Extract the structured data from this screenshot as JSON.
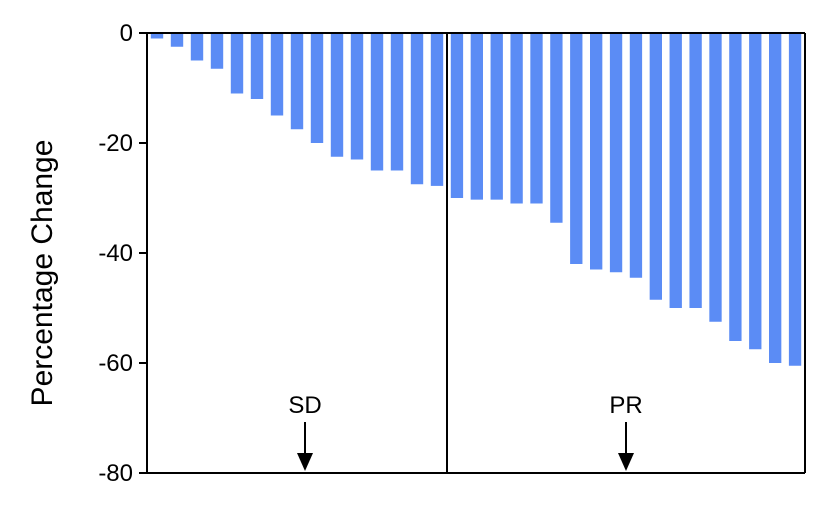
{
  "chart_data": {
    "type": "bar",
    "ylabel": "Percentage Change",
    "ylim": [
      -80,
      0
    ],
    "yticks": [
      0,
      -20,
      -40,
      -60,
      -80
    ],
    "bar_color": "#5b8cf5",
    "groups": [
      {
        "label": "SD",
        "values": [
          -1,
          -2.5,
          -5,
          -6.5,
          -11,
          -12,
          -15,
          -17.5,
          -20,
          -22.5,
          -23,
          -25,
          -25,
          -27.5,
          -27.8
        ]
      },
      {
        "label": "PR",
        "values": [
          -30,
          -30.3,
          -30.3,
          -31,
          -31,
          -34.5,
          -42,
          -43,
          -43.5,
          -44.5,
          -48.5,
          -50,
          -50,
          -52.5,
          -56,
          -57.5,
          -60,
          -60.5
        ]
      }
    ]
  }
}
